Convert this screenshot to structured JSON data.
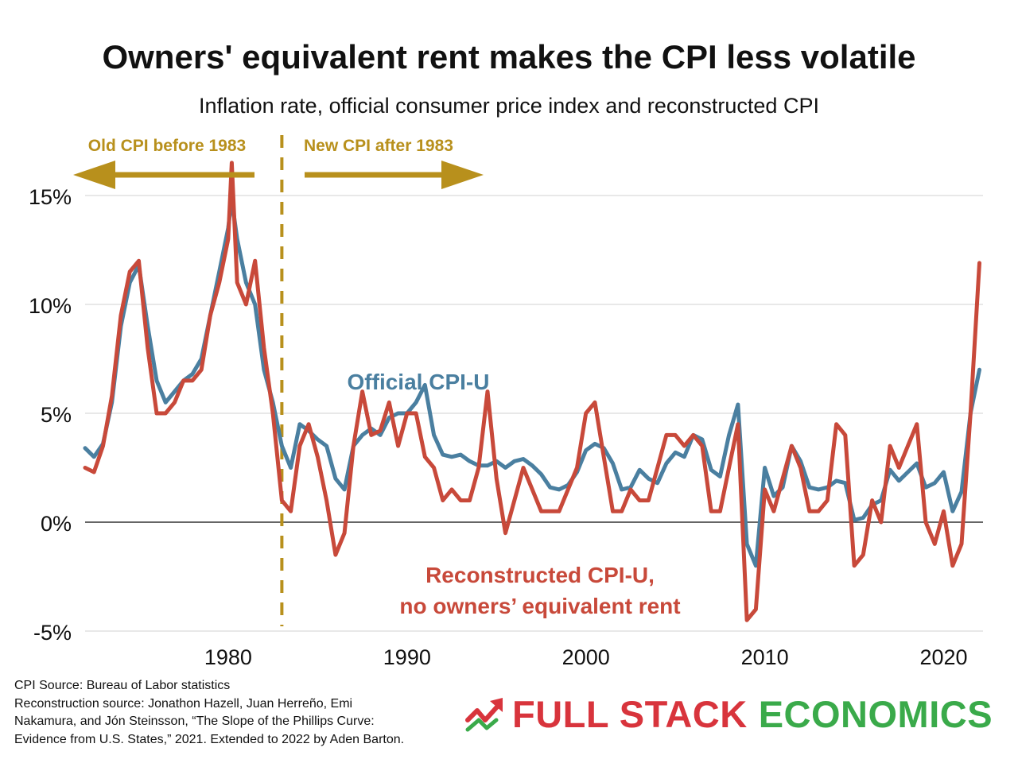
{
  "header": {
    "title": "Owners' equivalent rent makes the CPI less volatile",
    "subtitle": "Inflation rate, official consumer price index and reconstructed CPI"
  },
  "annotations": {
    "old_cpi": "Old CPI before 1983",
    "new_cpi": "New CPI after 1983",
    "official_label": "Official CPI-U",
    "reconstructed_line1": "Reconstructed CPI-U,",
    "reconstructed_line2": "no owners’ equivalent rent"
  },
  "footer": {
    "source_lines": [
      "CPI Source: Bureau of Labor statistics",
      "Reconstruction source: Jonathon Hazell, Juan Herreño, Emi",
      "Nakamura, and Jón Steinsson, “The Slope of the Phillips Curve:",
      "Evidence from U.S. States,” 2021. Extended to 2022 by Aden Barton."
    ],
    "logo_full": "FULL STACK",
    "logo_economics": "ECONOMICS"
  },
  "colors": {
    "official": "#4a7fa0",
    "reconstructed": "#c8493a",
    "annotation": "#b8901c",
    "logo_red": "#d8343c",
    "logo_green": "#3aaa4a",
    "grid": "#d9d9d9",
    "zero_line": "#333333"
  },
  "chart_data": {
    "type": "line",
    "title": "Owners' equivalent rent makes the CPI less volatile",
    "subtitle": "Inflation rate, official consumer price index and reconstructed CPI",
    "xlabel": "",
    "ylabel": "",
    "xlim": [
      1972.0,
      2022.2
    ],
    "ylim": [
      -5,
      15
    ],
    "x_ticks": [
      1980,
      1990,
      2000,
      2010,
      2020
    ],
    "y_ticks": [
      15,
      10,
      5,
      0,
      -5
    ],
    "y_tick_labels": [
      "15%",
      "10%",
      "5%",
      "0%",
      "-5%"
    ],
    "grid": true,
    "vertical_marker_x": 1983,
    "series": [
      {
        "name": "Official CPI-U",
        "x": [
          1972.0,
          1972.5,
          1973.0,
          1973.5,
          1974.0,
          1974.5,
          1975.0,
          1975.5,
          1976.0,
          1976.5,
          1977.0,
          1977.5,
          1978.0,
          1978.5,
          1979.0,
          1979.5,
          1980.0,
          1980.2,
          1980.5,
          1981.0,
          1981.5,
          1982.0,
          1982.5,
          1983.0,
          1983.5,
          1984.0,
          1984.5,
          1985.0,
          1985.5,
          1986.0,
          1986.5,
          1987.0,
          1987.5,
          1988.0,
          1988.5,
          1989.0,
          1989.5,
          1990.0,
          1990.5,
          1991.0,
          1991.5,
          1992.0,
          1992.5,
          1993.0,
          1993.5,
          1994.0,
          1994.5,
          1995.0,
          1995.5,
          1996.0,
          1996.5,
          1997.0,
          1997.5,
          1998.0,
          1998.5,
          1999.0,
          1999.5,
          2000.0,
          2000.5,
          2001.0,
          2001.5,
          2002.0,
          2002.5,
          2003.0,
          2003.5,
          2004.0,
          2004.5,
          2005.0,
          2005.5,
          2006.0,
          2006.5,
          2007.0,
          2007.5,
          2008.0,
          2008.5,
          2009.0,
          2009.5,
          2010.0,
          2010.5,
          2011.0,
          2011.5,
          2012.0,
          2012.5,
          2013.0,
          2013.5,
          2014.0,
          2014.5,
          2015.0,
          2015.5,
          2016.0,
          2016.5,
          2017.0,
          2017.5,
          2018.0,
          2018.5,
          2019.0,
          2019.5,
          2020.0,
          2020.5,
          2021.0,
          2021.5,
          2022.0
        ],
        "values": [
          3.4,
          3.0,
          3.6,
          5.5,
          9.0,
          11.0,
          11.8,
          9.0,
          6.5,
          5.5,
          6.0,
          6.5,
          6.8,
          7.5,
          9.5,
          11.5,
          13.5,
          14.8,
          13.0,
          11.0,
          10.0,
          7.0,
          5.5,
          3.5,
          2.5,
          4.5,
          4.2,
          3.8,
          3.5,
          2.0,
          1.5,
          3.5,
          4.0,
          4.3,
          4.0,
          4.8,
          5.0,
          5.0,
          5.5,
          6.3,
          4.0,
          3.1,
          3.0,
          3.1,
          2.8,
          2.6,
          2.6,
          2.8,
          2.5,
          2.8,
          2.9,
          2.6,
          2.2,
          1.6,
          1.5,
          1.7,
          2.3,
          3.3,
          3.6,
          3.4,
          2.7,
          1.5,
          1.6,
          2.4,
          2.0,
          1.8,
          2.7,
          3.2,
          3.0,
          4.0,
          3.8,
          2.4,
          2.1,
          4.0,
          5.4,
          -1.0,
          -2.0,
          2.5,
          1.2,
          1.6,
          3.5,
          2.8,
          1.6,
          1.5,
          1.6,
          1.9,
          1.8,
          0.1,
          0.2,
          0.8,
          1.0,
          2.4,
          1.9,
          2.3,
          2.7,
          1.6,
          1.8,
          2.3,
          0.5,
          1.4,
          5.0,
          7.0
        ]
      },
      {
        "name": "Reconstructed CPI-U, no owners’ equivalent rent",
        "x": [
          1972.0,
          1972.5,
          1973.0,
          1973.5,
          1974.0,
          1974.5,
          1975.0,
          1975.5,
          1976.0,
          1976.5,
          1977.0,
          1977.5,
          1978.0,
          1978.5,
          1979.0,
          1979.5,
          1980.0,
          1980.2,
          1980.5,
          1981.0,
          1981.5,
          1982.0,
          1982.5,
          1983.0,
          1983.5,
          1984.0,
          1984.5,
          1985.0,
          1985.5,
          1986.0,
          1986.5,
          1987.0,
          1987.5,
          1988.0,
          1988.5,
          1989.0,
          1989.5,
          1990.0,
          1990.5,
          1991.0,
          1991.5,
          1992.0,
          1992.5,
          1993.0,
          1993.5,
          1994.0,
          1994.5,
          1995.0,
          1995.5,
          1996.0,
          1996.5,
          1997.0,
          1997.5,
          1998.0,
          1998.5,
          1999.0,
          1999.5,
          2000.0,
          2000.5,
          2001.0,
          2001.5,
          2002.0,
          2002.5,
          2003.0,
          2003.5,
          2004.0,
          2004.5,
          2005.0,
          2005.5,
          2006.0,
          2006.5,
          2007.0,
          2007.5,
          2008.0,
          2008.5,
          2009.0,
          2009.5,
          2010.0,
          2010.5,
          2011.0,
          2011.5,
          2012.0,
          2012.5,
          2013.0,
          2013.5,
          2014.0,
          2014.5,
          2015.0,
          2015.5,
          2016.0,
          2016.5,
          2017.0,
          2017.5,
          2018.0,
          2018.5,
          2019.0,
          2019.5,
          2020.0,
          2020.5,
          2021.0,
          2021.5,
          2022.0
        ],
        "values": [
          2.5,
          2.3,
          3.5,
          5.8,
          9.5,
          11.5,
          12.0,
          8.0,
          5.0,
          5.0,
          5.5,
          6.5,
          6.5,
          7.0,
          9.5,
          11.0,
          13.0,
          16.5,
          11.0,
          10.0,
          12.0,
          8.0,
          5.0,
          1.0,
          0.5,
          3.5,
          4.5,
          3.0,
          1.0,
          -1.5,
          -0.5,
          3.5,
          6.0,
          4.0,
          4.2,
          5.5,
          3.5,
          5.0,
          5.0,
          3.0,
          2.5,
          1.0,
          1.5,
          1.0,
          1.0,
          2.5,
          6.0,
          2.0,
          -0.5,
          1.0,
          2.5,
          1.5,
          0.5,
          0.5,
          0.5,
          1.5,
          2.5,
          5.0,
          5.5,
          3.0,
          0.5,
          0.5,
          1.5,
          1.0,
          1.0,
          2.5,
          4.0,
          4.0,
          3.5,
          4.0,
          3.5,
          0.5,
          0.5,
          2.5,
          4.5,
          -4.5,
          -4.0,
          1.5,
          0.5,
          2.0,
          3.5,
          2.5,
          0.5,
          0.5,
          1.0,
          4.5,
          4.0,
          -2.0,
          -1.5,
          1.0,
          0.0,
          3.5,
          2.5,
          3.5,
          4.5,
          0.0,
          -1.0,
          0.5,
          -2.0,
          -1.0,
          5.0,
          11.9
        ]
      }
    ]
  }
}
